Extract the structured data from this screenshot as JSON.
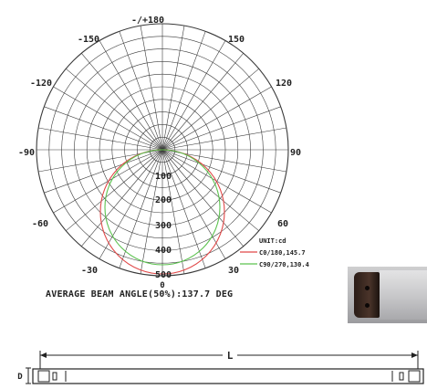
{
  "polar_diagram": {
    "angle_labels": {
      "top": "-/+180",
      "upper_left": "-150",
      "upper_right": "150",
      "mid_upper_left": "-120",
      "mid_upper_right": "120",
      "left": "-90",
      "right": "90",
      "lower_left": "-60",
      "lower_right": "60",
      "bottom_left": "-30",
      "bottom_right": "30",
      "bottom": "0"
    },
    "radial_labels": [
      "100",
      "200",
      "300",
      "400",
      "500"
    ],
    "legend": {
      "title": "UNIT:cd",
      "entries": [
        {
          "label": "C0/180,145.7",
          "color": "#e04848"
        },
        {
          "label": "C90/270,130.4",
          "color": "#5cc24f"
        }
      ]
    }
  },
  "avg_beam_angle_text": "AVERAGE BEAM ANGLE(50%):137.7 DEG",
  "tube_drawing": {
    "length_label": "L",
    "diameter_label": "D"
  },
  "colors": {
    "grid": "#3a3a3a",
    "c0_curve": "#e04848",
    "c90_curve": "#5cc24f"
  }
}
